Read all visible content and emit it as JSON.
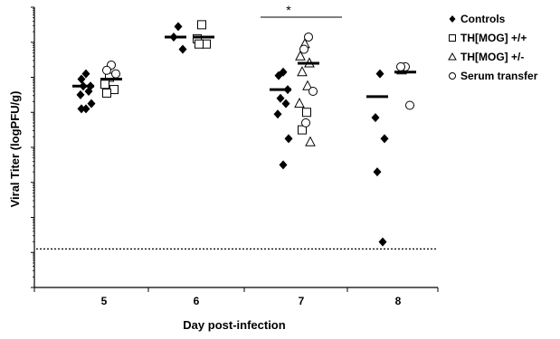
{
  "chart_data": {
    "type": "scatter",
    "title": "",
    "xlabel": "Day post-infection",
    "ylabel": "Viral Titer (logPFU/g)",
    "categories": [
      "5",
      "6",
      "7",
      "8"
    ],
    "ylim": [
      0,
      8
    ],
    "y_tick_labels_shown": false,
    "detection_limit": 1.1,
    "significance": [
      {
        "label": "*",
        "from": "7",
        "to": "7"
      }
    ],
    "series": [
      {
        "name": "Controls",
        "marker": "filled-diamond",
        "color": "#000000",
        "points": [
          {
            "x": "5",
            "y": 6.1
          },
          {
            "x": "5",
            "y": 5.95
          },
          {
            "x": "5",
            "y": 5.75
          },
          {
            "x": "5",
            "y": 5.75
          },
          {
            "x": "5",
            "y": 5.6
          },
          {
            "x": "5",
            "y": 5.5
          },
          {
            "x": "5",
            "y": 5.25
          },
          {
            "x": "5",
            "y": 5.1
          },
          {
            "x": "5",
            "y": 5.1
          },
          {
            "x": "6",
            "y": 7.45
          },
          {
            "x": "6",
            "y": 7.15
          },
          {
            "x": "6",
            "y": 6.8
          },
          {
            "x": "7",
            "y": 6.15
          },
          {
            "x": "7",
            "y": 6.05
          },
          {
            "x": "7",
            "y": 5.65
          },
          {
            "x": "7",
            "y": 5.4
          },
          {
            "x": "7",
            "y": 5.25
          },
          {
            "x": "7",
            "y": 4.95
          },
          {
            "x": "7",
            "y": 4.25
          },
          {
            "x": "7",
            "y": 3.5
          },
          {
            "x": "8",
            "y": 6.1
          },
          {
            "x": "8",
            "y": 4.85
          },
          {
            "x": "8",
            "y": 4.25
          },
          {
            "x": "8",
            "y": 3.3
          },
          {
            "x": "8",
            "y": 1.3
          }
        ],
        "means": [
          {
            "x": "5",
            "y": 5.75
          },
          {
            "x": "6",
            "y": 7.15
          },
          {
            "x": "7",
            "y": 5.65
          },
          {
            "x": "8",
            "y": 5.45
          }
        ]
      },
      {
        "name": "TH[MOG] +/+",
        "marker": "open-square",
        "color": "#000000",
        "points": [
          {
            "x": "5",
            "y": 6.0
          },
          {
            "x": "5",
            "y": 5.8
          },
          {
            "x": "5",
            "y": 5.65
          },
          {
            "x": "5",
            "y": 5.55
          },
          {
            "x": "6",
            "y": 7.5
          },
          {
            "x": "6",
            "y": 7.1
          },
          {
            "x": "6",
            "y": 6.95
          },
          {
            "x": "6",
            "y": 6.95
          },
          {
            "x": "7",
            "y": 5.0
          },
          {
            "x": "7",
            "y": 4.5
          }
        ],
        "means": [
          {
            "x": "5",
            "y": 5.95
          },
          {
            "x": "6",
            "y": 7.15
          },
          {
            "x": "7",
            "y": 6.4
          },
          {
            "x": "8",
            "y": 6.15
          }
        ]
      },
      {
        "name": "TH[MOG] +/-",
        "marker": "open-triangle",
        "color": "#000000",
        "points": [
          {
            "x": "7",
            "y": 6.95
          },
          {
            "x": "7",
            "y": 6.6
          },
          {
            "x": "7",
            "y": 6.4
          },
          {
            "x": "7",
            "y": 6.15
          },
          {
            "x": "7",
            "y": 5.75
          },
          {
            "x": "7",
            "y": 5.25
          },
          {
            "x": "7",
            "y": 4.15
          },
          {
            "x": "8",
            "y": 6.2
          }
        ]
      },
      {
        "name": "Serum transfer",
        "marker": "open-circle",
        "color": "#000000",
        "points": [
          {
            "x": "5",
            "y": 6.35
          },
          {
            "x": "5",
            "y": 6.2
          },
          {
            "x": "5",
            "y": 6.1
          },
          {
            "x": "7",
            "y": 7.15
          },
          {
            "x": "7",
            "y": 6.8
          },
          {
            "x": "7",
            "y": 5.6
          },
          {
            "x": "7",
            "y": 4.7
          },
          {
            "x": "8",
            "y": 6.3
          },
          {
            "x": "8",
            "y": 6.3
          },
          {
            "x": "8",
            "y": 5.2
          }
        ]
      }
    ],
    "legend": {
      "position": "right",
      "items": [
        {
          "label": "Controls",
          "marker": "filled-diamond"
        },
        {
          "label": "TH[MOG] +/+",
          "marker": "open-square"
        },
        {
          "label": "TH[MOG] +/-",
          "marker": "open-triangle"
        },
        {
          "label": "Serum transfer",
          "marker": "open-circle"
        }
      ]
    }
  }
}
